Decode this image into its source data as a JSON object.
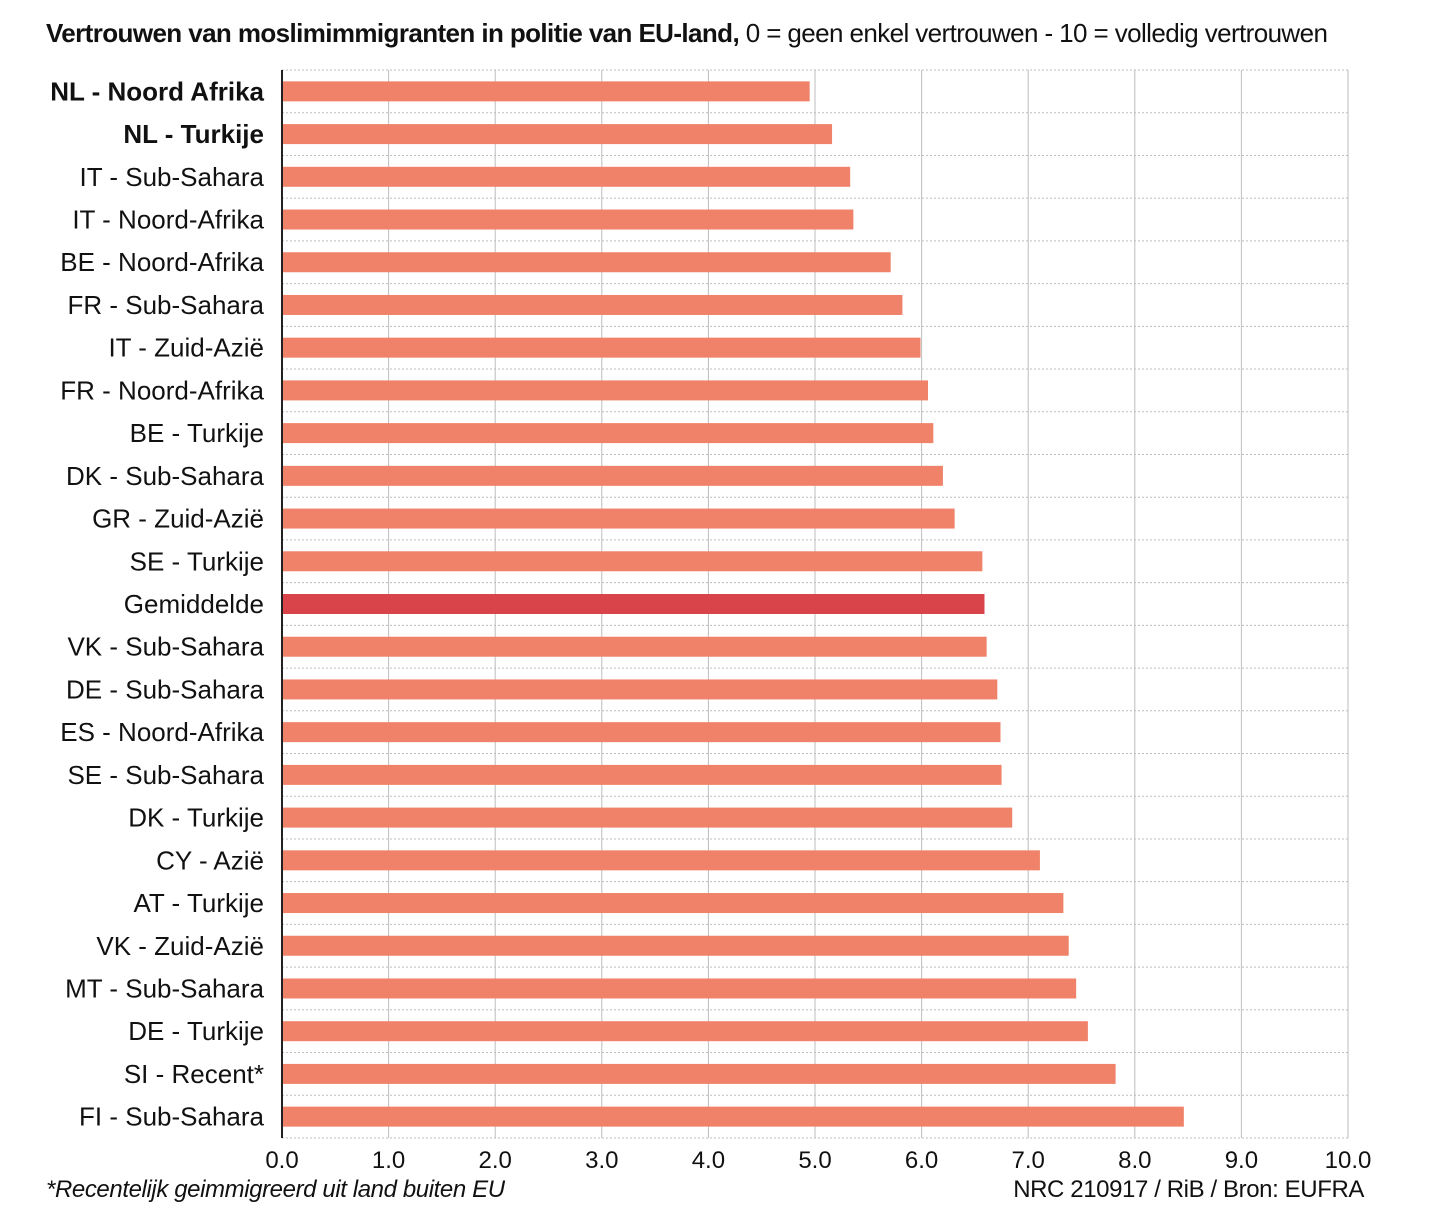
{
  "header": {
    "title_bold": "Vertrouwen van moslimimmigranten in politie van EU-land,",
    "title_rest": " 0 = geen enkel vertrouwen - 10 = volledig vertrouwen"
  },
  "footer": {
    "footnote": "*Recentelijk geimmigreerd uit land buiten EU",
    "credit": "NRC 210917 / RiB / Bron: EUFRA"
  },
  "colors": {
    "bar": "#f0826a",
    "highlight": "#d9444a",
    "grid": "#bdbdbd",
    "axis": "#222222"
  },
  "chart_data": {
    "type": "bar",
    "orientation": "horizontal",
    "title": "Vertrouwen van moslimimmigranten in politie van EU-land, 0 = geen enkel vertrouwen - 10 = volledig vertrouwen",
    "categories": [
      "NL - Noord Afrika",
      "NL - Turkije",
      "IT - Sub-Sahara",
      "IT - Noord-Afrika",
      "BE - Noord-Afrika",
      "FR - Sub-Sahara",
      "IT - Zuid-Azië",
      "FR - Noord-Afrika",
      "BE - Turkije",
      "DK - Sub-Sahara",
      "GR - Zuid-Azië",
      "SE - Turkije",
      "Gemiddelde",
      "VK - Sub-Sahara",
      "DE - Sub-Sahara",
      "ES - Noord-Afrika",
      "SE - Sub-Sahara",
      "DK - Turkije",
      "CY - Azië",
      "AT - Turkije",
      "VK - Zuid-Azië",
      "MT - Sub-Sahara",
      "DE - Turkije",
      "SI - Recent*",
      "FI - Sub-Sahara"
    ],
    "values": [
      4.95,
      5.16,
      5.33,
      5.36,
      5.71,
      5.82,
      5.99,
      6.06,
      6.11,
      6.2,
      6.31,
      6.57,
      6.59,
      6.61,
      6.71,
      6.74,
      6.75,
      6.85,
      7.11,
      7.33,
      7.38,
      7.45,
      7.56,
      7.82,
      8.46
    ],
    "bold_categories": [
      "NL - Noord Afrika",
      "NL - Turkije"
    ],
    "highlight_category": "Gemiddelde",
    "xlim": [
      0,
      10
    ],
    "xticks": [
      "0.0",
      "1.0",
      "2.0",
      "3.0",
      "4.0",
      "5.0",
      "6.0",
      "7.0",
      "8.0",
      "9.0",
      "10.0"
    ],
    "grid": true,
    "legend": "none"
  }
}
